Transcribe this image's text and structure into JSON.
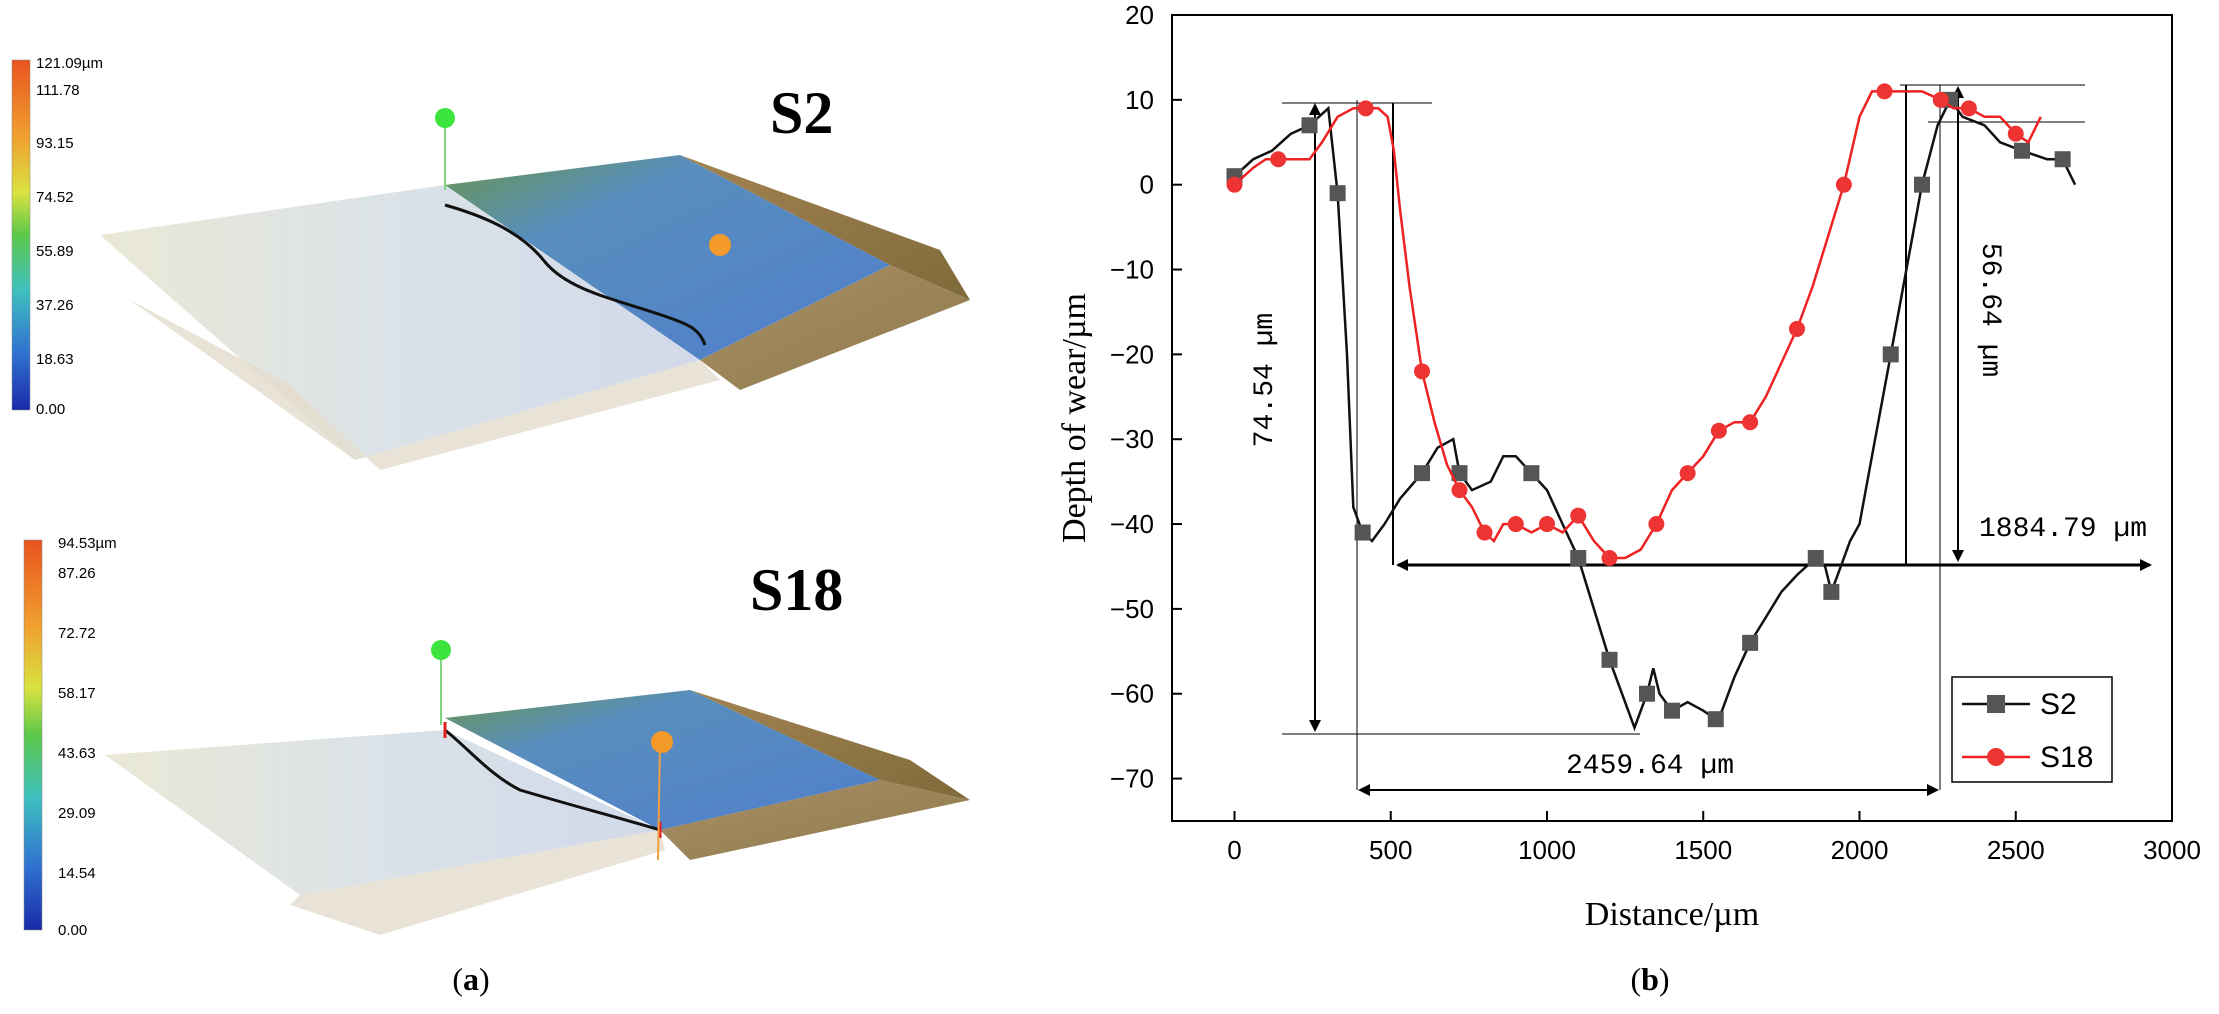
{
  "panel_a": {
    "caption_letter": "a",
    "caption_open": "(",
    "caption_close": ")",
    "maps": [
      {
        "label": "S2",
        "colorbar": {
          "max_label": "121.09µm",
          "ticks": [
            "111.78",
            "93.15",
            "74.52",
            "55.89",
            "37.26",
            "18.63",
            "0.00"
          ]
        }
      },
      {
        "label": "S18",
        "colorbar": {
          "max_label": "94.53µm",
          "ticks": [
            "87.26",
            "72.72",
            "58.17",
            "43.63",
            "29.09",
            "14.54",
            "0.00"
          ]
        }
      }
    ]
  },
  "panel_b": {
    "caption_letter": "b",
    "caption_open": "(",
    "caption_close": ")"
  },
  "colors": {
    "S2": "#111111",
    "S2_marker": "#555555",
    "S18": "#ee2222",
    "S18_marker": "#ee3333"
  },
  "chart_data": {
    "type": "line",
    "xlabel": "Distance/µm",
    "ylabel": "Depth of wear/µm",
    "xlim": [
      -200,
      3000
    ],
    "ylim": [
      -75,
      20
    ],
    "xticks": [
      0,
      500,
      1000,
      1500,
      2000,
      2500,
      3000
    ],
    "yticks": [
      20,
      10,
      0,
      -10,
      -20,
      -30,
      -40,
      -50,
      -60,
      -70
    ],
    "legend_position": "bottom-right",
    "series": [
      {
        "name": "S2",
        "color": "#111111",
        "marker": "square",
        "x": [
          0,
          60,
          120,
          180,
          240,
          300,
          330,
          360,
          380,
          410,
          440,
          480,
          530,
          600,
          650,
          700,
          720,
          760,
          820,
          860,
          900,
          950,
          1000,
          1050,
          1100,
          1150,
          1200,
          1240,
          1280,
          1320,
          1340,
          1360,
          1400,
          1450,
          1500,
          1540,
          1560,
          1600,
          1650,
          1700,
          1750,
          1800,
          1860,
          1890,
          1910,
          1940,
          1970,
          2000,
          2050,
          2100,
          2150,
          2200,
          2250,
          2290,
          2330,
          2400,
          2450,
          2520,
          2600,
          2650,
          2690
        ],
        "y": [
          1,
          3,
          4,
          6,
          7,
          9,
          -1,
          -20,
          -38,
          -41,
          -42,
          -40,
          -37,
          -34,
          -31,
          -30,
          -34,
          -36,
          -35,
          -32,
          -32,
          -34,
          -36,
          -40,
          -44,
          -50,
          -56,
          -60,
          -64,
          -60,
          -57,
          -60,
          -62,
          -61,
          -62,
          -63,
          -62,
          -58,
          -54,
          -51,
          -48,
          -46,
          -44,
          -45,
          -48,
          -45,
          -42,
          -40,
          -30,
          -20,
          -10,
          0,
          7,
          10,
          8,
          7,
          5,
          4,
          3,
          3,
          0
        ]
      },
      {
        "name": "S18",
        "color": "#ee2222",
        "marker": "circle",
        "x": [
          0,
          60,
          100,
          140,
          180,
          240,
          280,
          330,
          380,
          420,
          460,
          490,
          510,
          530,
          560,
          600,
          640,
          680,
          720,
          760,
          800,
          830,
          860,
          900,
          950,
          1000,
          1050,
          1100,
          1150,
          1200,
          1250,
          1300,
          1350,
          1400,
          1450,
          1500,
          1550,
          1600,
          1650,
          1700,
          1750,
          1800,
          1850,
          1900,
          1950,
          2000,
          2040,
          2080,
          2100,
          2150,
          2200,
          2260,
          2300,
          2350,
          2400,
          2450,
          2500,
          2540,
          2580
        ],
        "y": [
          0,
          2,
          3,
          3,
          3,
          3,
          5,
          8,
          9,
          9,
          9,
          8,
          4,
          -3,
          -12,
          -22,
          -28,
          -33,
          -36,
          -38,
          -41,
          -42,
          -40,
          -40,
          -41,
          -40,
          -41,
          -39,
          -42,
          -44,
          -44,
          -43,
          -40,
          -36,
          -34,
          -32,
          -29,
          -28,
          -28,
          -25,
          -21,
          -17,
          -12,
          -6,
          0,
          8,
          11,
          11,
          11,
          11,
          11,
          10,
          9,
          9,
          8,
          8,
          6,
          5,
          8
        ]
      }
    ],
    "annotations": [
      "74.54 µm",
      "56.64 µm",
      "1884.79 µm",
      "2459.64 µm"
    ]
  }
}
